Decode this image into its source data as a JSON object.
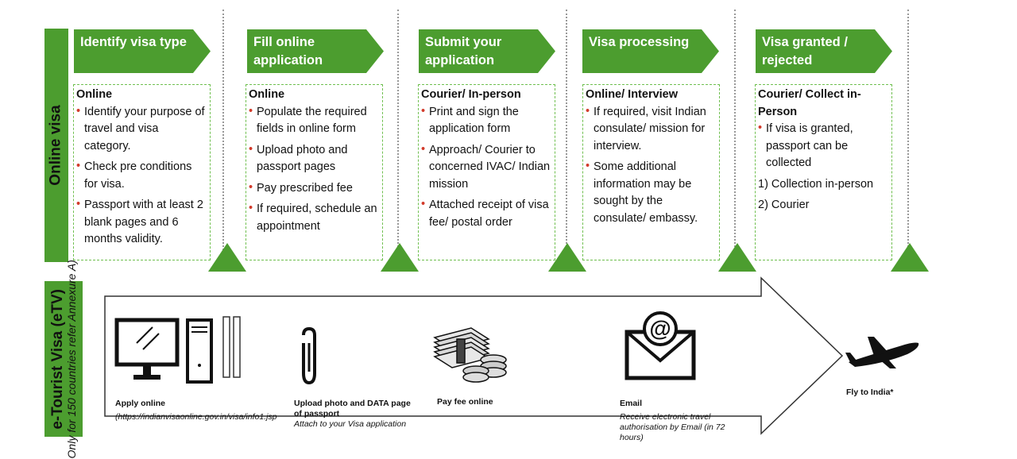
{
  "online_visa": {
    "side_label": "Online visa",
    "steps": [
      {
        "title": "Identify visa type",
        "mode": "Online",
        "bullets": [
          "Identify your purpose of travel and visa category.",
          "Check pre conditions for visa.",
          "Passport with at least 2 blank pages and 6 months validity."
        ]
      },
      {
        "title": "Fill online application",
        "mode": "Online",
        "bullets": [
          "Populate the required fields in online form",
          "Upload photo and passport pages",
          "Pay prescribed fee",
          "If required, schedule an appointment"
        ]
      },
      {
        "title": "Submit your application",
        "mode": "Courier/ In-person",
        "bullets": [
          "Print and sign  the application form",
          "Approach/ Courier to concerned IVAC/ Indian mission",
          "Attached receipt of visa fee/ postal order"
        ]
      },
      {
        "title": "Visa processing",
        "mode": "Online/ Interview",
        "bullets": [
          "If required, visit Indian consulate/ mission for interview.",
          "Some additional information may be sought by the consulate/ embassy."
        ]
      },
      {
        "title": "Visa granted / rejected",
        "mode": "Courier/ Collect in-Person",
        "bullets": [
          "If visa is granted, passport can be collected"
        ],
        "options": [
          "1) Collection in-person",
          "2) Courier"
        ]
      }
    ]
  },
  "etv": {
    "side_label_title": "e-Tourist Visa (eTV)",
    "side_label_note": "Only for 150 countries refer Annexure A)",
    "steps": {
      "apply": {
        "label": "Apply online",
        "sub": "(https://indianvisaonline.gov.in/visa/info1.jsp"
      },
      "upload": {
        "label": "Upload photo and DATA page of passport",
        "sub": "Attach to your Visa application"
      },
      "pay": {
        "label": "Pay fee online",
        "sub": ""
      },
      "email": {
        "label": "Email",
        "sub": "Receive electronic travel authorisation  by Email (in 72 hours)"
      },
      "fly": {
        "label": "Fly to India*",
        "sub": ""
      }
    }
  },
  "colors": {
    "green": "#4c9d2f",
    "bullet": "#d23a2a",
    "box_border": "#6fbf4f"
  },
  "icons": [
    "computer-icon",
    "paperclip-icon",
    "money-icon",
    "email-icon",
    "airplane-icon"
  ]
}
